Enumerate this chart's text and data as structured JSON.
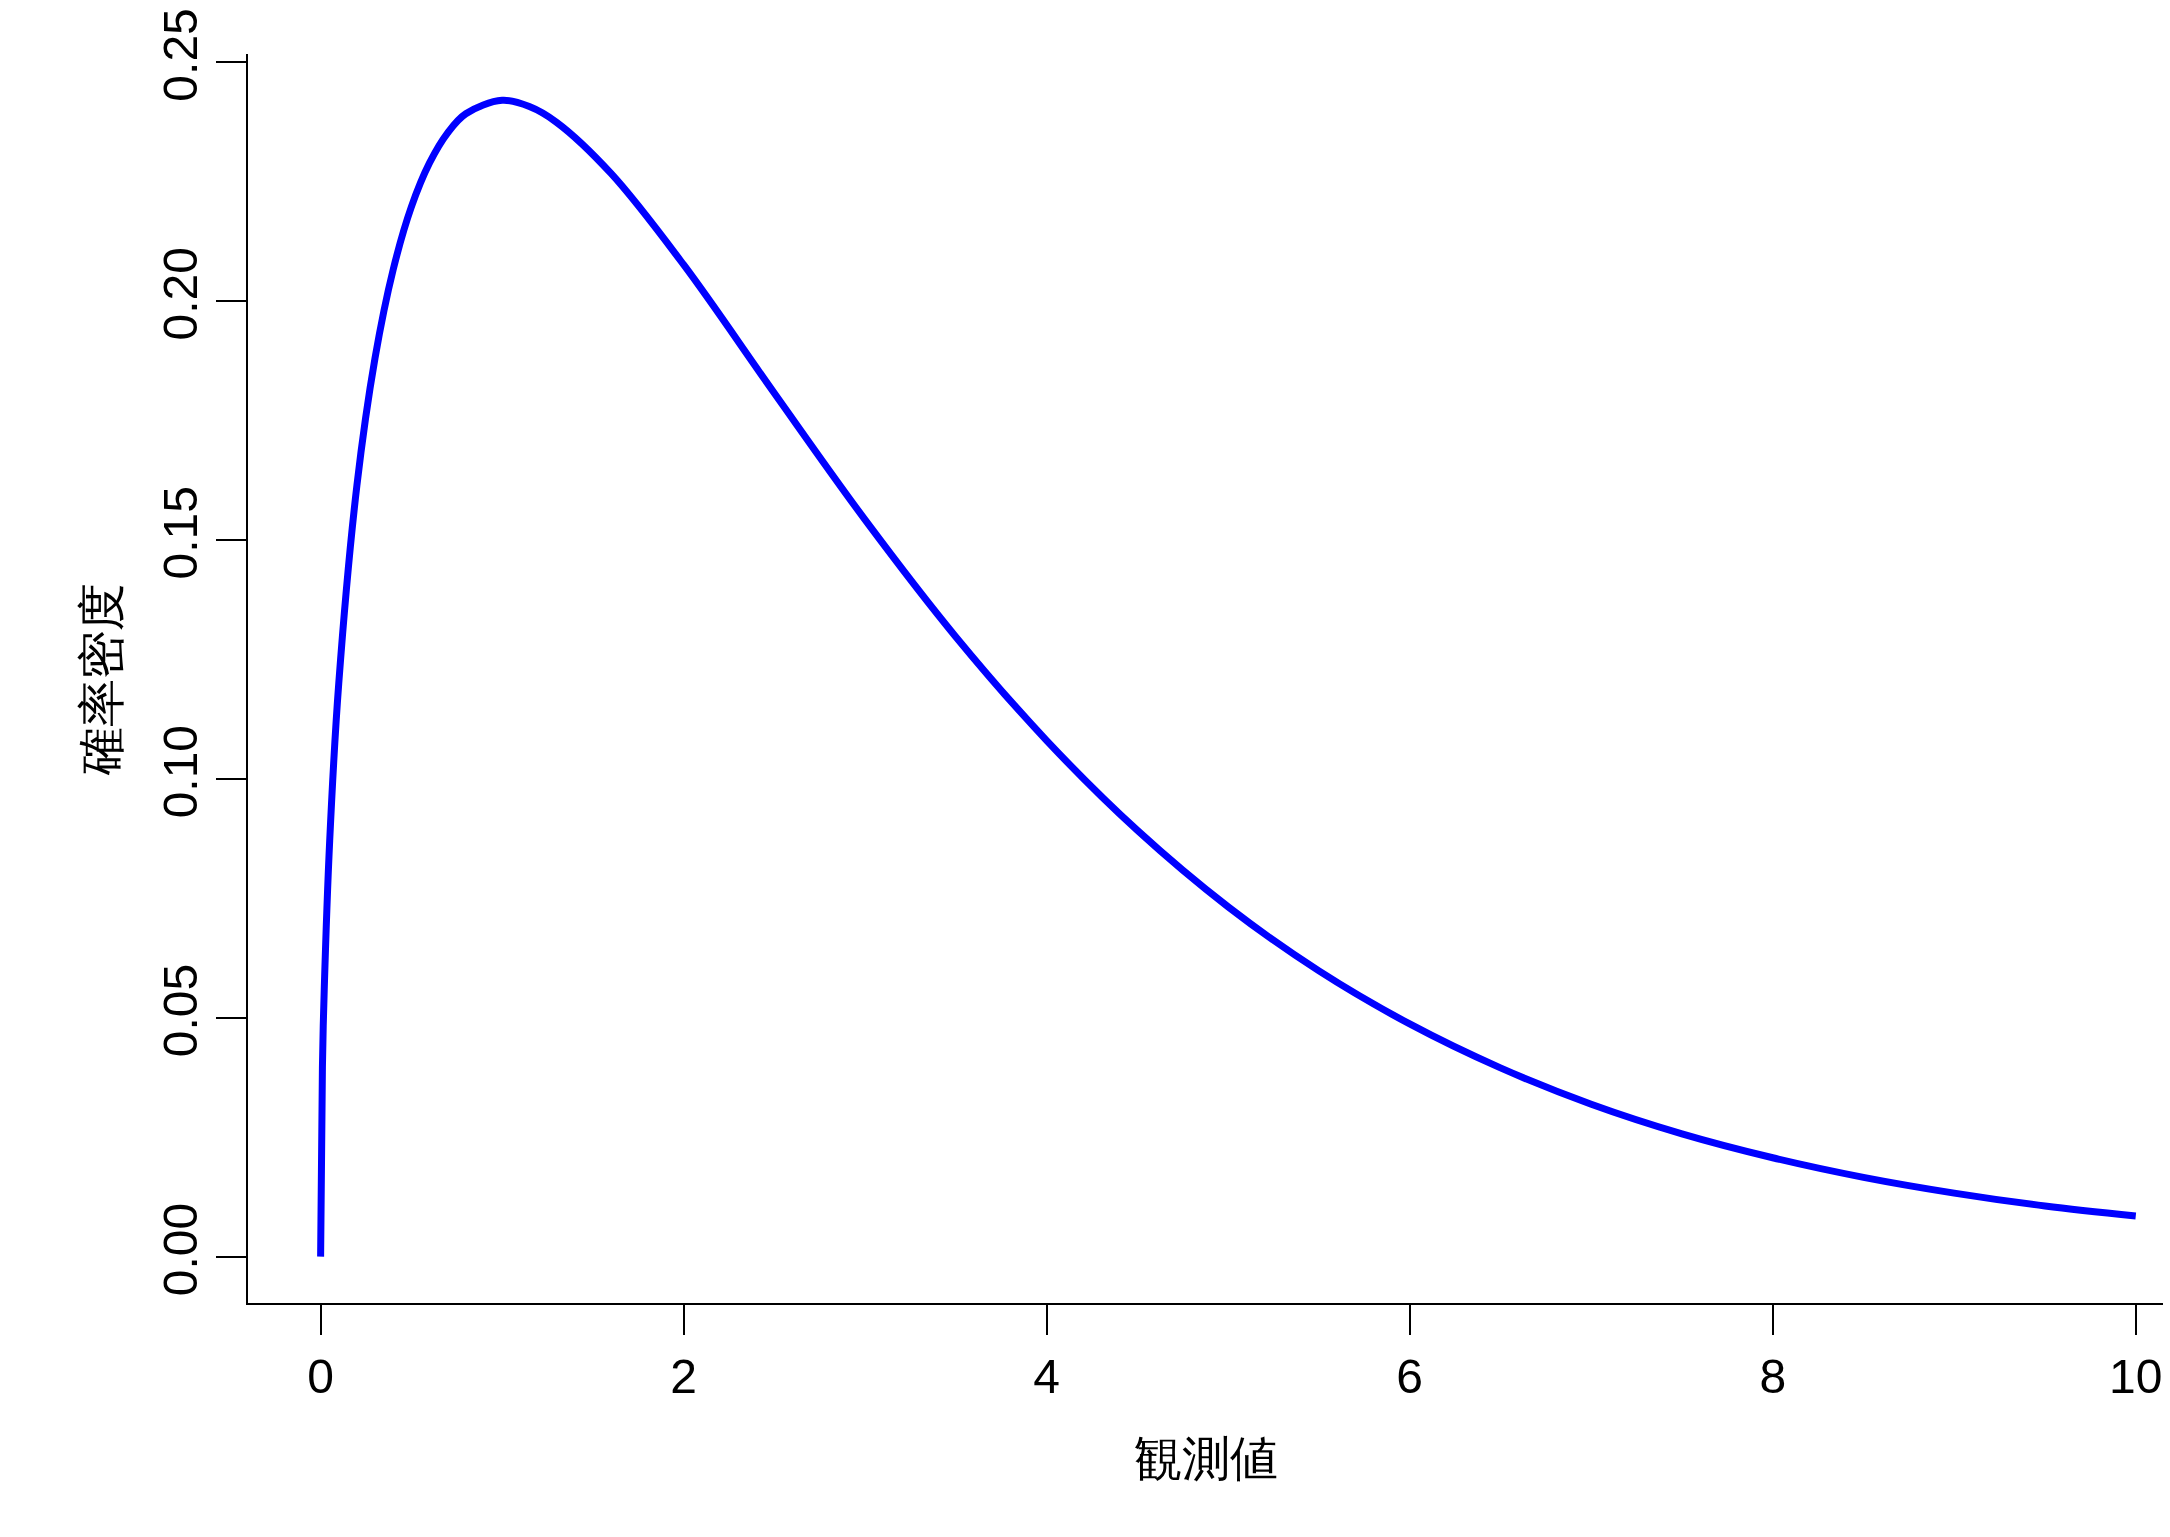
{
  "chart_data": {
    "type": "line",
    "xlabel": "観測値",
    "ylabel": "確率密度",
    "x": [
      0,
      0.01,
      0.02,
      0.05,
      0.1,
      0.2,
      0.3,
      0.4,
      0.5,
      0.6,
      0.7,
      0.8,
      1,
      1.15,
      1.3,
      1.6,
      2,
      2.5,
      3,
      3.5,
      4,
      4.5,
      5,
      5.5,
      6,
      6.5,
      7,
      7.5,
      8,
      8.5,
      9,
      9.5,
      10
    ],
    "series": [
      {
        "color": "#0000ff",
        "values": [
          0,
          0.0397,
          0.0559,
          0.087,
          0.12,
          0.1614,
          0.1881,
          0.2066,
          0.2197,
          0.2289,
          0.2352,
          0.2392,
          0.242,
          0.2407,
          0.2374,
          0.2267,
          0.2076,
          0.1807,
          0.1542,
          0.1297,
          0.108,
          0.0892,
          0.0732,
          0.0598,
          0.0487,
          0.0395,
          0.0319,
          0.0257,
          0.0207,
          0.0166,
          0.0133,
          0.0106,
          0.0085
        ]
      }
    ],
    "xlim": [
      -0.4,
      10.15
    ],
    "ylim": [
      -0.0097,
      0.2517
    ],
    "xticks": [
      0,
      2,
      4,
      6,
      8,
      10
    ],
    "yticks": [
      {
        "value": 0,
        "label": "0.00"
      },
      {
        "value": 0.05,
        "label": "0.05"
      },
      {
        "value": 0.1,
        "label": "0.10"
      },
      {
        "value": 0.15,
        "label": "0.15"
      },
      {
        "value": 0.2,
        "label": "0.20"
      },
      {
        "value": 0.25,
        "label": "0.25"
      }
    ],
    "marker": "none",
    "line_style": "solid"
  }
}
